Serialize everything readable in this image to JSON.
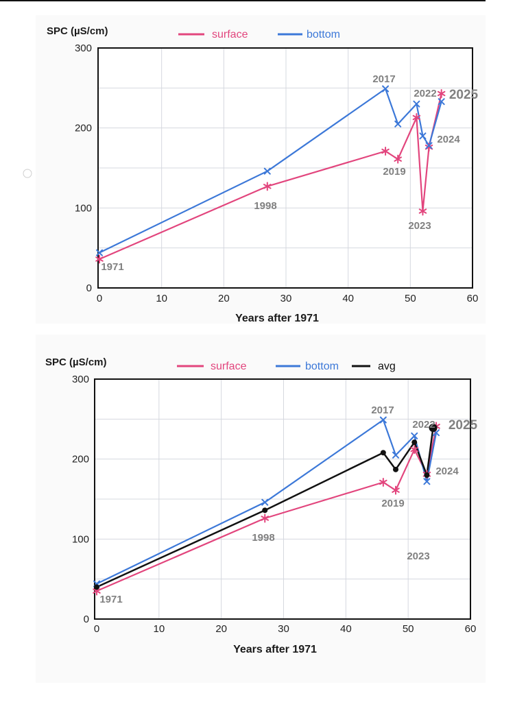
{
  "chart_data": [
    {
      "type": "line",
      "ylabel": "SPC (µS/cm)",
      "xlabel": "Years after 1971",
      "xlim": [
        0,
        60
      ],
      "ylim": [
        0,
        300
      ],
      "xticks": [
        0,
        10,
        20,
        30,
        40,
        50,
        60
      ],
      "yticks": [
        0,
        100,
        200,
        300
      ],
      "grid": true,
      "legend": "top",
      "series": [
        {
          "name": "surface",
          "color": "#e2457d",
          "marker": "asterisk",
          "x": [
            0,
            27,
            46,
            48,
            51,
            52,
            53,
            55
          ],
          "y": [
            36,
            127,
            171,
            161,
            213,
            96,
            176,
            243
          ]
        },
        {
          "name": "bottom",
          "color": "#3c78d8",
          "marker": "x",
          "x": [
            0,
            27,
            46,
            48,
            51,
            52,
            53,
            55
          ],
          "y": [
            44,
            146,
            249,
            205,
            230,
            190,
            178,
            233
          ]
        }
      ],
      "annotations": [
        {
          "text": "1971",
          "x": 0
        },
        {
          "text": "1998",
          "x": 27
        },
        {
          "text": "2017",
          "x": 46
        },
        {
          "text": "2019",
          "x": 48
        },
        {
          "text": "2022",
          "x": 51
        },
        {
          "text": "2023",
          "x": 52
        },
        {
          "text": "2024",
          "x": 53
        },
        {
          "text": "2025",
          "x": 55
        }
      ]
    },
    {
      "type": "line",
      "ylabel": "SPC (µS/cm)",
      "xlabel": "Years after 1971",
      "xlim": [
        0,
        60
      ],
      "ylim": [
        0,
        300
      ],
      "xticks": [
        0,
        10,
        20,
        30,
        40,
        50,
        60
      ],
      "yticks": [
        0,
        100,
        200,
        300
      ],
      "grid": true,
      "legend": "top",
      "series": [
        {
          "name": "surface",
          "color": "#e2457d",
          "marker": "asterisk",
          "x": [
            0,
            27,
            46,
            48,
            51,
            53,
            54.5
          ],
          "y": [
            35,
            126,
            171,
            161,
            212,
            181,
            241
          ]
        },
        {
          "name": "bottom",
          "color": "#3c78d8",
          "marker": "x",
          "x": [
            0,
            27,
            46,
            48,
            51,
            53,
            54.5
          ],
          "y": [
            44,
            146,
            249,
            205,
            229,
            172,
            233
          ]
        },
        {
          "name": "avg",
          "color": "#111111",
          "marker": "dot",
          "x": [
            0,
            27,
            46,
            48,
            51,
            53,
            54
          ],
          "y": [
            40,
            136,
            208,
            187,
            221,
            180,
            239
          ]
        }
      ],
      "annotations": [
        {
          "text": "1971",
          "x": 0
        },
        {
          "text": "1998",
          "x": 27
        },
        {
          "text": "2017",
          "x": 46
        },
        {
          "text": "2019",
          "x": 48
        },
        {
          "text": "2022",
          "x": 51
        },
        {
          "text": "2023",
          "x": 52
        },
        {
          "text": "2024",
          "x": 53
        },
        {
          "text": "2025",
          "x": 54
        }
      ]
    }
  ]
}
